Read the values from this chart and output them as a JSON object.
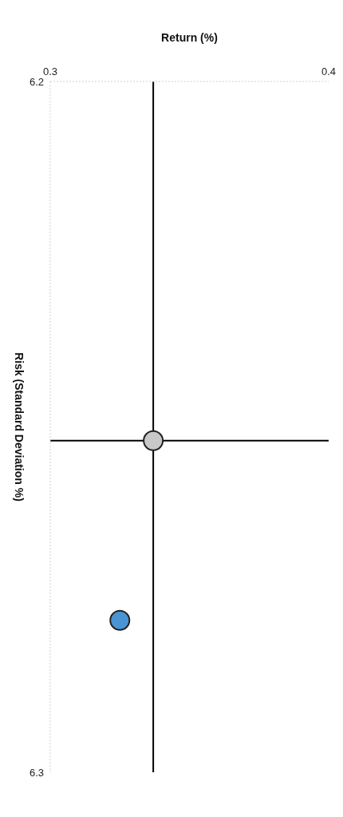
{
  "chart_data": {
    "type": "scatter",
    "xlabel": "Return (%)",
    "ylabel": "Risk (Standard Deviation %)",
    "xlim": [
      0.3,
      0.4
    ],
    "xticks": [
      0.3,
      0.4
    ],
    "ylim": [
      6.3,
      6.2
    ],
    "yticks": [
      6.2,
      6.3
    ],
    "series": [
      {
        "color": "#c8c8c8",
        "x": [
          0.337
        ],
        "values": [
          6.252
        ]
      },
      {
        "color": "#4a94d4",
        "x": [
          0.325
        ],
        "values": [
          6.278
        ]
      }
    ],
    "ref_lines": [
      {
        "axis": "x",
        "value": 0.337,
        "color": "#000000"
      },
      {
        "axis": "y",
        "value": 6.252,
        "color": "#000000"
      }
    ],
    "marker": "circle",
    "grid": false,
    "legend": false
  }
}
